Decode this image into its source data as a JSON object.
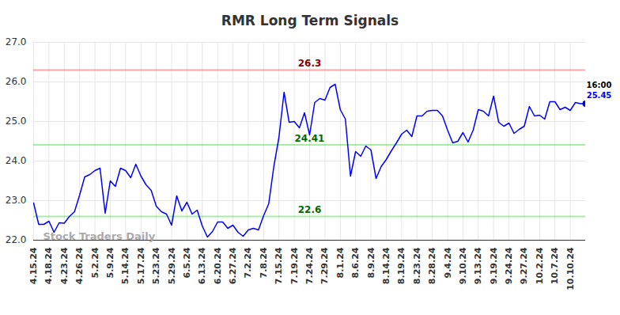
{
  "chart_data": {
    "type": "line",
    "title": "RMR Long Term Signals",
    "categories": [
      "4.15.24",
      null,
      null,
      "4.18.24",
      null,
      null,
      "4.23.24",
      null,
      null,
      "4.26.24",
      null,
      null,
      "5.2.24",
      null,
      null,
      "5.9.24",
      null,
      null,
      "5.14.24",
      null,
      null,
      "5.17.24",
      null,
      null,
      "5.23.24",
      null,
      null,
      "5.29.24",
      null,
      null,
      "6.5.24",
      null,
      null,
      "6.13.24",
      null,
      null,
      "6.20.24",
      null,
      null,
      "6.27.24",
      null,
      null,
      "7.2.24",
      null,
      null,
      "7.8.24",
      null,
      null,
      "7.15.24",
      null,
      null,
      "7.19.24",
      null,
      null,
      "7.24.24",
      null,
      null,
      "7.29.24",
      null,
      null,
      "8.1.24",
      null,
      null,
      "8.6.24",
      null,
      null,
      "8.9.24",
      null,
      null,
      "8.14.24",
      null,
      null,
      "8.19.24",
      null,
      null,
      "8.23.24",
      null,
      null,
      "8.28.24",
      null,
      null,
      "9.4.24",
      null,
      null,
      "9.10.24",
      null,
      null,
      "9.13.24",
      null,
      null,
      "9.19.24",
      null,
      null,
      "9.24.24",
      null,
      null,
      "9.27.24",
      null,
      null,
      "10.2.24",
      null,
      null,
      "10.7.24",
      null,
      null,
      "10.10.24",
      null,
      null,
      null
    ],
    "series": [
      {
        "name": "RMR",
        "color": "#0000ff",
        "values": [
          22.94,
          22.4,
          22.4,
          22.48,
          22.2,
          22.44,
          22.43,
          22.6,
          22.72,
          23.14,
          23.6,
          23.66,
          23.76,
          23.82,
          22.68,
          23.5,
          23.36,
          23.82,
          23.76,
          23.58,
          23.92,
          23.62,
          23.4,
          23.26,
          22.86,
          22.72,
          22.66,
          22.38,
          23.12,
          22.74,
          22.96,
          22.66,
          22.76,
          22.36,
          22.08,
          22.22,
          22.46,
          22.46,
          22.3,
          22.38,
          22.2,
          22.1,
          22.26,
          22.3,
          22.26,
          22.62,
          22.92,
          23.86,
          24.6,
          25.74,
          24.98,
          25.0,
          24.84,
          25.22,
          24.66,
          25.48,
          25.58,
          25.54,
          25.86,
          25.94,
          25.3,
          25.06,
          23.62,
          24.24,
          24.12,
          24.38,
          24.28,
          23.56,
          23.86,
          24.04,
          24.26,
          24.46,
          24.68,
          24.78,
          24.62,
          25.14,
          25.14,
          25.26,
          25.28,
          25.28,
          25.14,
          24.78,
          24.46,
          24.5,
          24.72,
          24.48,
          24.78,
          25.3,
          25.26,
          25.14,
          25.64,
          24.98,
          24.88,
          24.96,
          24.7,
          24.8,
          24.88,
          25.38,
          25.14,
          25.16,
          25.06,
          25.5,
          25.5,
          25.3,
          25.36,
          25.28,
          25.48,
          25.45,
          25.45
        ]
      }
    ],
    "levels": [
      {
        "value": 26.3,
        "color": "#ff0000"
      },
      {
        "value": 24.41,
        "color": "#00cc00"
      },
      {
        "value": 22.6,
        "color": "#00cc00"
      }
    ],
    "last_point_time": "16:00",
    "watermark": "Stock Traders Daily",
    "ylim": [
      22,
      27
    ],
    "yticks": [
      22,
      23,
      24,
      25,
      26,
      27
    ],
    "grid": true
  }
}
